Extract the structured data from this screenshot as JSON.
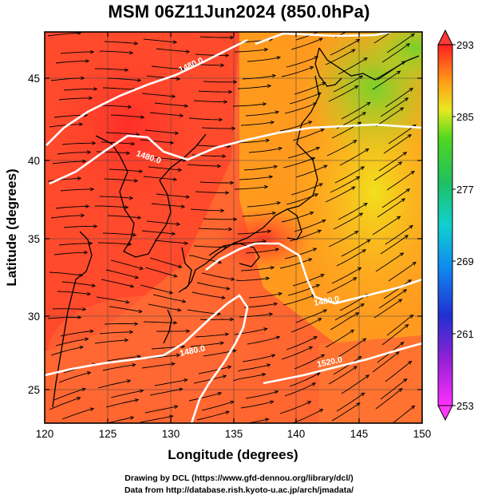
{
  "title": "MSM 06Z11Jun2024 (850.0hPa)",
  "x_axis": {
    "label": "Longitude (degrees)",
    "ticks": [
      "120",
      "125",
      "130",
      "135",
      "140",
      "145",
      "150"
    ]
  },
  "y_axis": {
    "label": "Latitude  (degrees)",
    "ticks": [
      "25",
      "30",
      "35",
      "40",
      "45"
    ]
  },
  "colorbar": {
    "ticks": [
      "293",
      "285",
      "277",
      "269",
      "261",
      "253"
    ],
    "min": 253,
    "max": 293
  },
  "contour_labels": [
    "1480.0",
    "1480.0",
    "1480.0",
    "1480.0",
    "1520.0"
  ],
  "colors": {
    "warm": "#ff4a2a",
    "orange": "#ff9a1f",
    "yellow": "#f2e21c",
    "green": "#6cd628",
    "contour": "#ffffff",
    "streamline": "#000000"
  },
  "credits": {
    "line1": "Drawing by DCL (https://www.gfd-dennou.org/library/dcl/)",
    "line2": "Data from http://database.rish.kyoto-u.ac.jp/arch/jmadata/"
  }
}
